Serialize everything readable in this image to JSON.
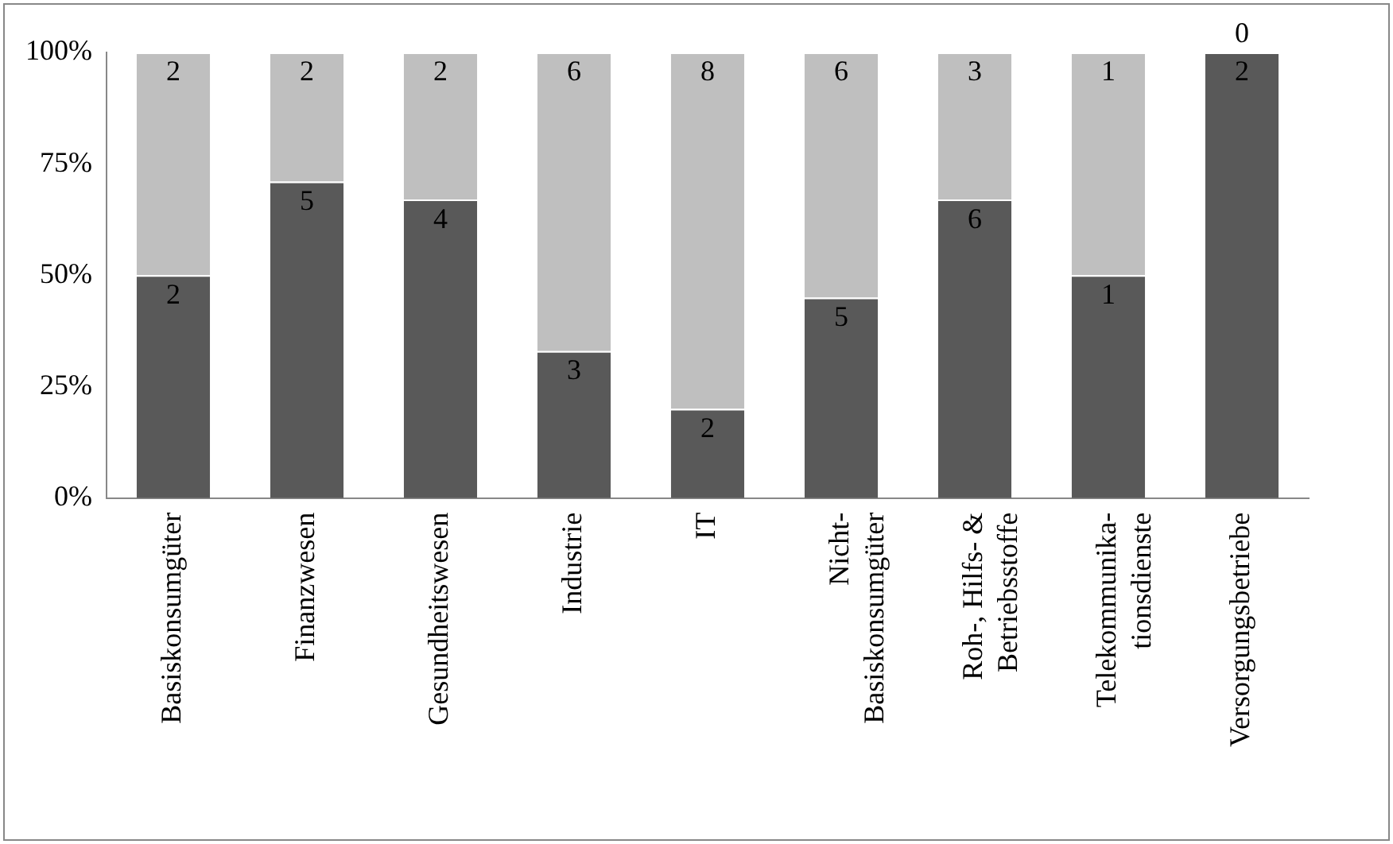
{
  "chart_data": {
    "type": "bar",
    "stacked": true,
    "categories": [
      "Basiskonsumgüter",
      "Finanzwesen",
      "Gesundheitswesen",
      "Industrie",
      "IT",
      "Nicht-\nBasiskonsumgüter",
      "Roh-, Hilfs- &\nBetriebsstoffe",
      "Telekommunika-\ntionsdienste",
      "Versorgungsbetriebe"
    ],
    "series": [
      {
        "color": "#595959",
        "values": [
          50,
          71,
          67,
          33,
          20,
          45,
          67,
          50,
          100
        ]
      },
      {
        "color": "#bfbfbf",
        "values": [
          50,
          29,
          33,
          67,
          80,
          55,
          33,
          50,
          0
        ]
      }
    ],
    "annotations": [
      {
        "text": "2",
        "x": "Basiskonsumgüter",
        "y": 50
      },
      {
        "text": "5",
        "x": "Finanzwesen",
        "y": 71
      },
      {
        "text": "4",
        "x": "Gesundheitswesen",
        "y": 67
      },
      {
        "text": "3",
        "x": "Industrie",
        "y": 33
      },
      {
        "text": "2",
        "x": "IT",
        "y": 20
      },
      {
        "text": "5",
        "x": "Nicht-\nBasiskonsumgüter",
        "y": 45
      },
      {
        "text": "6",
        "x": "Roh-, Hilfs- &\nBetriebsstoffe",
        "y": 67
      },
      {
        "text": "1",
        "x": "Telekommunika-\ntionsdienste",
        "y": 50
      },
      {
        "text": "2",
        "x": "Versorgungsbetriebe",
        "y": 100
      },
      {
        "text": "2",
        "x": "Basiskonsumgüter",
        "y": 100
      },
      {
        "text": "2",
        "x": "Finanzwesen",
        "y": 100
      },
      {
        "text": "2",
        "x": "Gesundheitswesen",
        "y": 100
      },
      {
        "text": "6",
        "x": "Industrie",
        "y": 100
      },
      {
        "text": "8",
        "x": "IT",
        "y": 100
      },
      {
        "text": "6",
        "x": "Nicht-\nBasiskonsumgüter",
        "y": 100
      },
      {
        "text": "3",
        "x": "Roh-, Hilfs- &\nBetriebsstoffe",
        "y": 100
      },
      {
        "text": "1",
        "x": "Telekommunika-\ntionsdienste",
        "y": 100
      },
      {
        "text": "0",
        "x": "Versorgungsbetriebe",
        "y": 100
      }
    ],
    "ylim": [
      0,
      100
    ],
    "yticks": [
      {
        "value": 0,
        "label": "0%"
      },
      {
        "value": 25,
        "label": "25%"
      },
      {
        "value": 50,
        "label": "50%"
      },
      {
        "value": 75,
        "label": "75%"
      },
      {
        "value": 100,
        "label": "100%"
      }
    ],
    "grid": false,
    "legend": false
  }
}
